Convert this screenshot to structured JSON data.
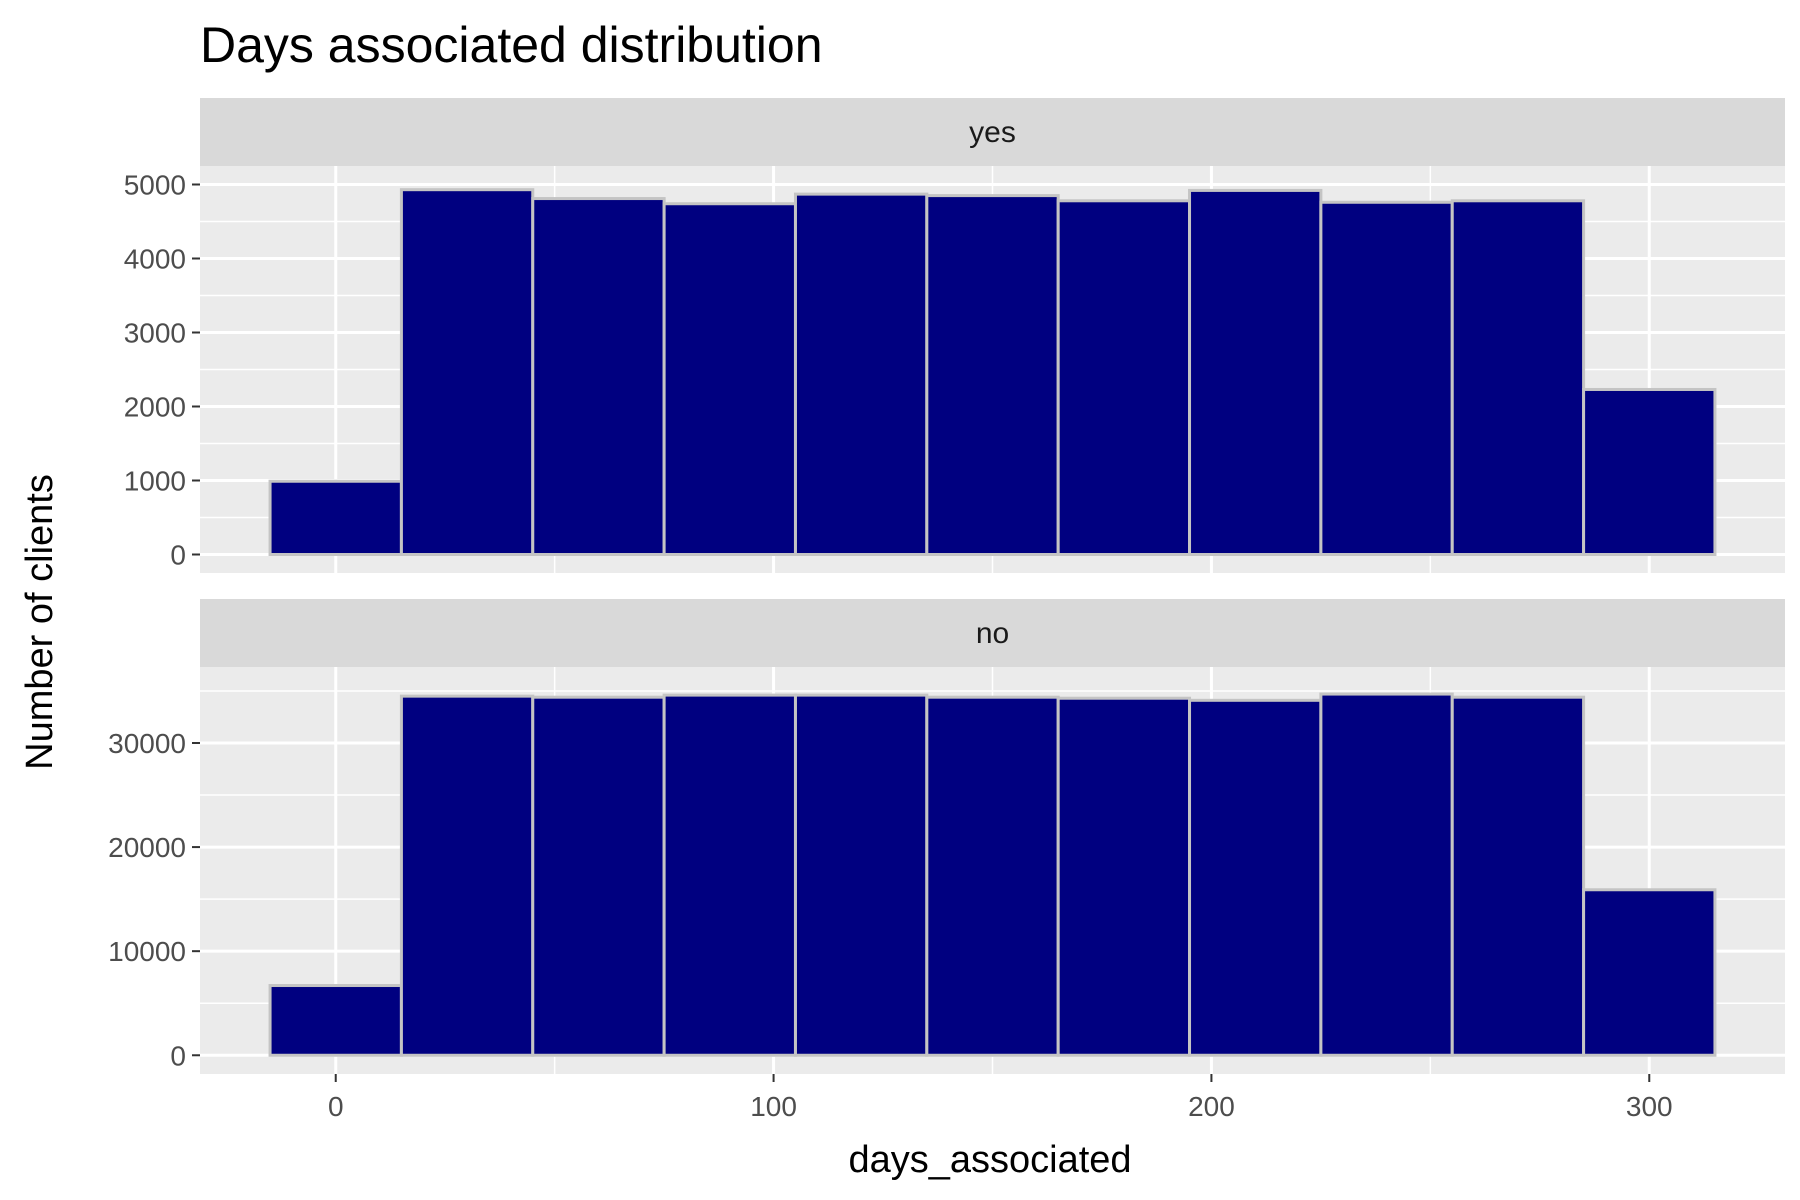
{
  "chart_data": {
    "type": "bar",
    "title": "Days associated distribution",
    "xlabel": "days_associated",
    "ylabel": "Number of clients",
    "x_ticks": [
      0,
      100,
      200,
      300
    ],
    "xlim": [
      -31,
      331
    ],
    "bin_edges": [
      -15,
      15,
      45,
      75,
      105,
      135,
      165,
      195,
      225,
      255,
      285,
      315
    ],
    "grid": true,
    "colors": {
      "fill": "#000080",
      "outline": "#c4c4c4",
      "panel": "#ebebeb",
      "strip": "#d9d9d9",
      "grid": "#ffffff"
    },
    "facets": [
      {
        "label": "yes",
        "ylim": [
          -250,
          5250
        ],
        "y_ticks": [
          0,
          1000,
          2000,
          3000,
          4000,
          5000
        ],
        "values": [
          990,
          4930,
          4810,
          4740,
          4870,
          4850,
          4780,
          4920,
          4760,
          4780,
          2230
        ]
      },
      {
        "label": "no",
        "ylim": [
          -1800,
          37300
        ],
        "y_ticks": [
          0,
          10000,
          20000,
          30000
        ],
        "values": [
          6700,
          34500,
          34400,
          34600,
          34600,
          34400,
          34300,
          34100,
          34700,
          34400,
          15900
        ]
      }
    ]
  }
}
